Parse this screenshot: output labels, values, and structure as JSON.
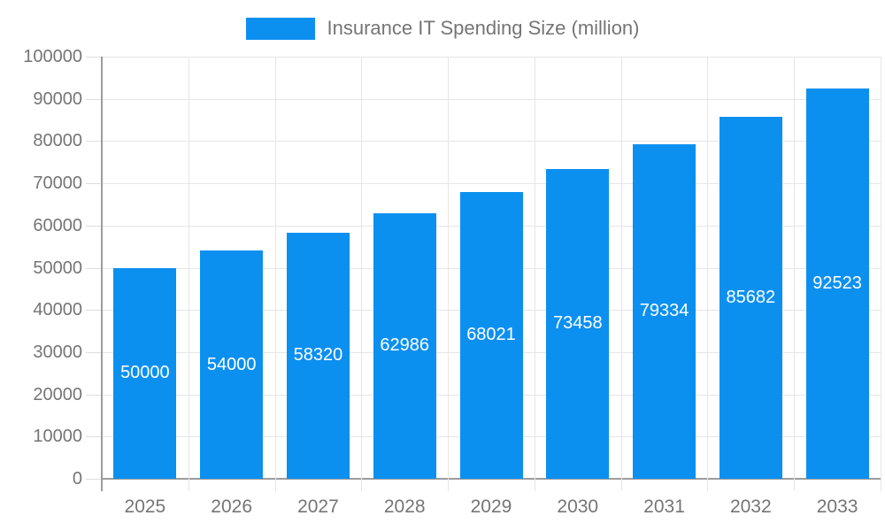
{
  "legend": {
    "label": "Insurance IT Spending Size (million)"
  },
  "chart_data": {
    "type": "bar",
    "title": "Insurance IT Spending Size (million)",
    "categories": [
      "2025",
      "2026",
      "2027",
      "2028",
      "2029",
      "2030",
      "2031",
      "2032",
      "2033"
    ],
    "values": [
      50000,
      54000,
      58320,
      62986,
      68021,
      73458,
      79334,
      85682,
      92523
    ],
    "value_labels": [
      "50000",
      "54000",
      "58320",
      "62986",
      "68021",
      "73458",
      "79334",
      "85682",
      "92523"
    ],
    "xlabel": "",
    "ylabel": "",
    "ylim": [
      0,
      100000
    ],
    "ytick_step": 10000,
    "yticks": [
      "0",
      "10000",
      "20000",
      "30000",
      "40000",
      "50000",
      "60000",
      "70000",
      "80000",
      "90000",
      "100000"
    ],
    "grid": true,
    "legend_position": "top",
    "value_label_position": "inside-center"
  },
  "colors": {
    "bar": "#0c90f0",
    "bar_value_text": "#ffffff",
    "grid": "#e6e6e6",
    "axis": "#9c9c9c",
    "tick": "#dedede",
    "text": "#757575",
    "background": "#ffffff"
  }
}
